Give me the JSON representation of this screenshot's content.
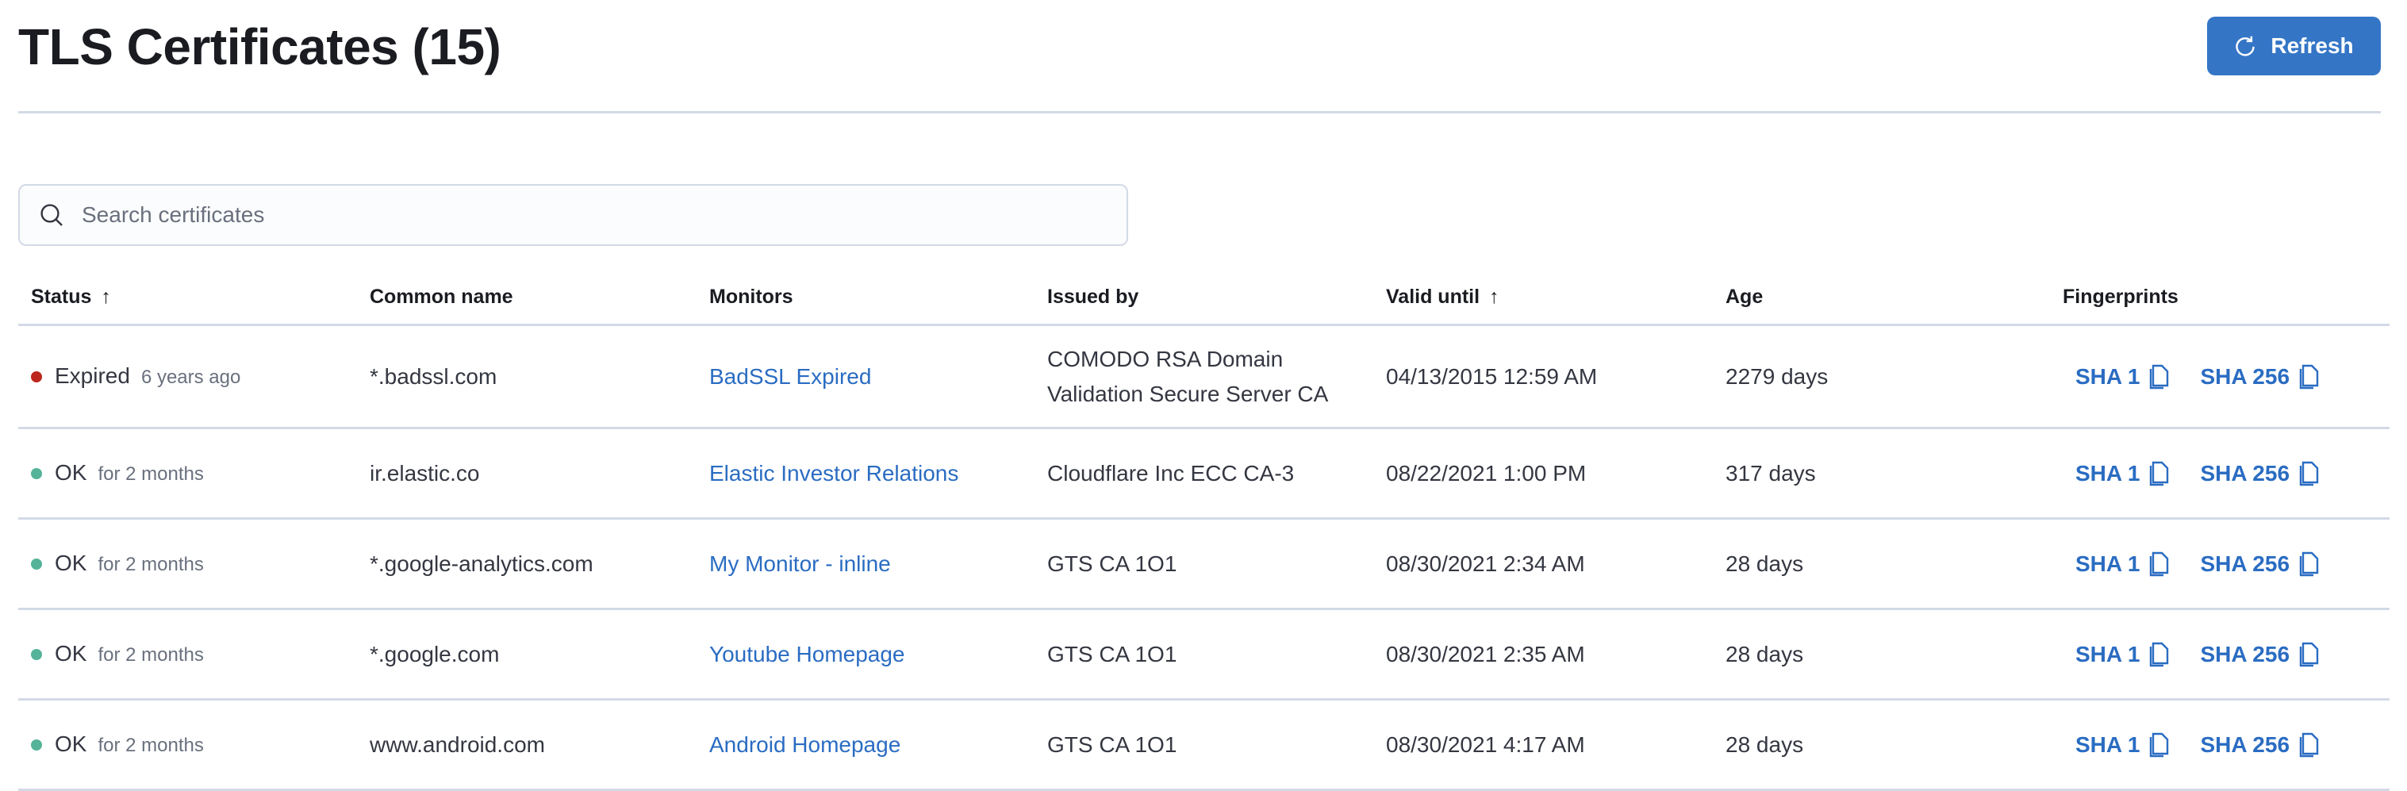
{
  "header": {
    "title": "TLS Certificates (15)",
    "refresh_label": "Refresh"
  },
  "search": {
    "placeholder": "Search certificates",
    "value": ""
  },
  "colors": {
    "accent": "#3475c6",
    "expired": "#bd271e",
    "ok": "#54b399",
    "link": "#2a6cc2"
  },
  "table": {
    "columns": [
      {
        "label": "Status",
        "sort": "asc"
      },
      {
        "label": "Common name"
      },
      {
        "label": "Monitors"
      },
      {
        "label": "Issued by"
      },
      {
        "label": "Valid until",
        "sort": "asc"
      },
      {
        "label": "Age"
      },
      {
        "label": "Fingerprints"
      }
    ],
    "rows": [
      {
        "status": "Expired",
        "status_color": "#bd271e",
        "status_time": "6 years ago",
        "common_name": "*.badssl.com",
        "monitor": "BadSSL Expired",
        "issued_by": "COMODO RSA Domain Validation Secure Server CA",
        "valid_until": "04/13/2015 12:59 AM",
        "age": "2279 days",
        "sha1": "SHA 1",
        "sha256": "SHA 256"
      },
      {
        "status": "OK",
        "status_color": "#54b399",
        "status_time": "for 2 months",
        "common_name": "ir.elastic.co",
        "monitor": "Elastic Investor Relations",
        "issued_by": "Cloudflare Inc ECC CA-3",
        "valid_until": "08/22/2021 1:00 PM",
        "age": "317 days",
        "sha1": "SHA 1",
        "sha256": "SHA 256"
      },
      {
        "status": "OK",
        "status_color": "#54b399",
        "status_time": "for 2 months",
        "common_name": "*.google-analytics.com",
        "monitor": "My Monitor - inline",
        "issued_by": "GTS CA 1O1",
        "valid_until": "08/30/2021 2:34 AM",
        "age": "28 days",
        "sha1": "SHA 1",
        "sha256": "SHA 256"
      },
      {
        "status": "OK",
        "status_color": "#54b399",
        "status_time": "for 2 months",
        "common_name": "*.google.com",
        "monitor": "Youtube Homepage",
        "issued_by": "GTS CA 1O1",
        "valid_until": "08/30/2021 2:35 AM",
        "age": "28 days",
        "sha1": "SHA 1",
        "sha256": "SHA 256"
      },
      {
        "status": "OK",
        "status_color": "#54b399",
        "status_time": "for 2 months",
        "common_name": "www.android.com",
        "monitor": "Android Homepage",
        "issued_by": "GTS CA 1O1",
        "valid_until": "08/30/2021 4:17 AM",
        "age": "28 days",
        "sha1": "SHA 1",
        "sha256": "SHA 256"
      }
    ]
  }
}
